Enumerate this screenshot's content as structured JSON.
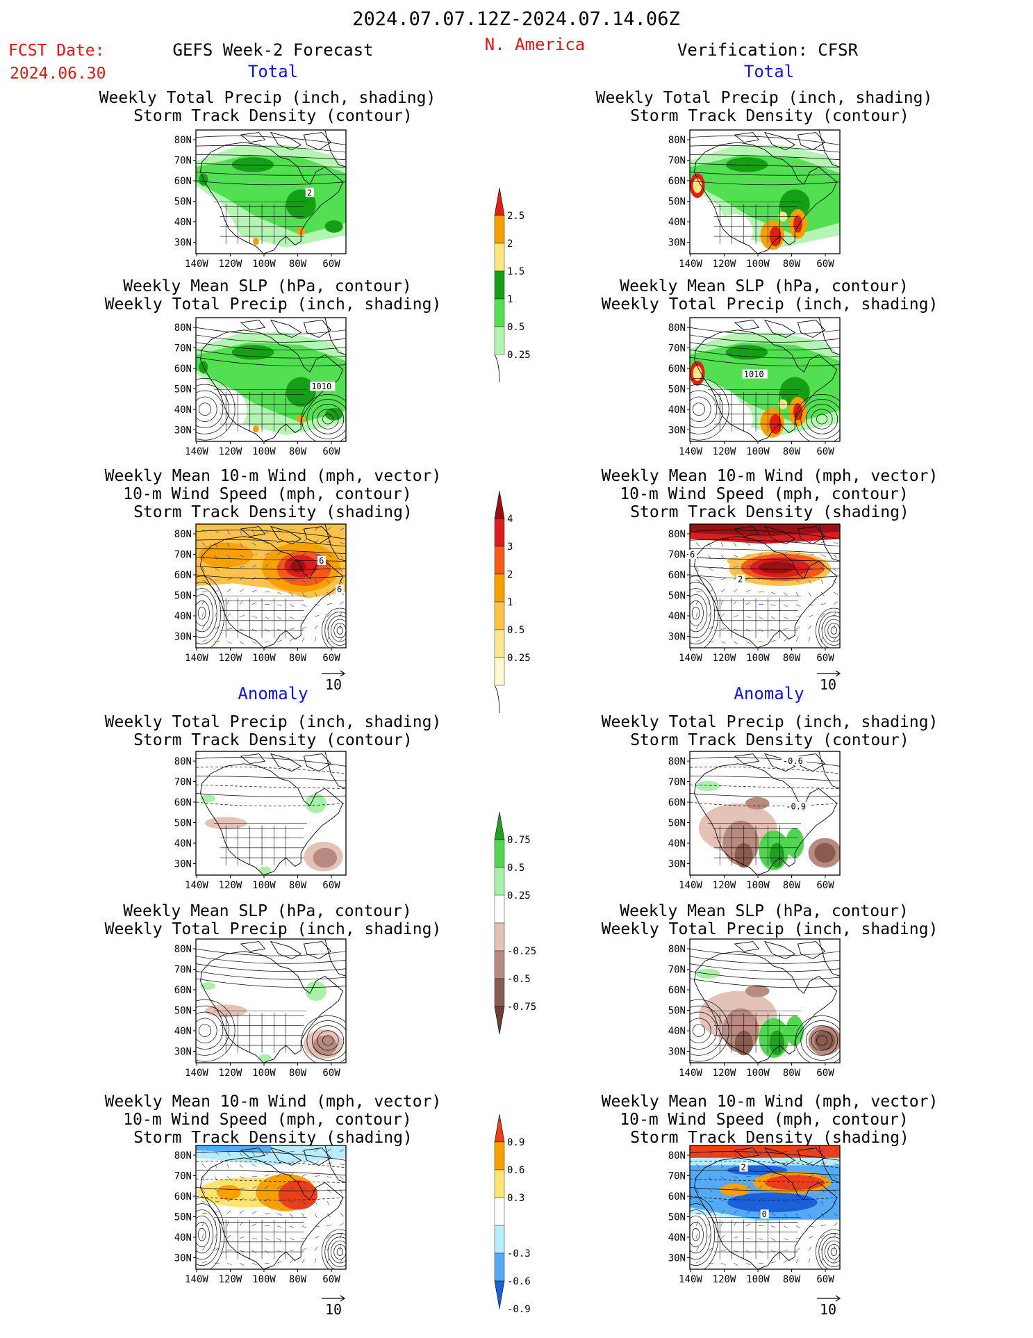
{
  "header": {
    "date_range": "2024.07.07.12Z-2024.07.14.06Z",
    "fcst_label": "FCST Date:",
    "fcst_date": "2024.06.30",
    "model_title": "GEFS Week-2 Forecast",
    "region": "N. America",
    "verification": "Verification: CFSR"
  },
  "section_labels": {
    "total": "Total",
    "anomaly": "Anomaly"
  },
  "panel_titles": {
    "precip_track": [
      "Weekly Total Precip (inch, shading)",
      "Storm Track Density (contour)"
    ],
    "slp_precip": [
      "Weekly Mean SLP (hPa, contour)",
      "Weekly Total Precip (inch, shading)"
    ],
    "wind_track": [
      "Weekly Mean 10-m Wind (mph, vector)",
      "10-m Wind Speed (mph, contour)",
      "Storm Track Density (shading)"
    ]
  },
  "map_axes": {
    "lat_ticks": [
      "80N",
      "70N",
      "60N",
      "50N",
      "40N",
      "30N"
    ],
    "lon_ticks": [
      "140W",
      "120W",
      "100W",
      "80W",
      "60W"
    ]
  },
  "vector_ref": "10",
  "contour_labels": {
    "track_2": "2",
    "slp_1010": "1010",
    "wind_6": "6",
    "wind_2": "2",
    "anom_06": "-0.6",
    "anom_09": "-0.9",
    "anom_2": "2",
    "anom_0": "0"
  },
  "colorbars": [
    {
      "id": "precip_total",
      "labels": [
        "2.5",
        "2",
        "1.5",
        "1",
        "0.5",
        "0.25"
      ],
      "colors": [
        "#e02010",
        "#f5a000",
        "#ffe680",
        "#169f16",
        "#52e052",
        "#b4f5b4"
      ]
    },
    {
      "id": "track_total",
      "labels": [
        "4",
        "3",
        "2",
        "1",
        "0.5",
        "0.25"
      ],
      "colors": [
        "#9b1010",
        "#d81e1e",
        "#f45a1a",
        "#f8a000",
        "#fcc24a",
        "#ffe690",
        "#fff8d0"
      ]
    },
    {
      "id": "precip_anom",
      "labels": [
        "0.75",
        "0.5",
        "0.25",
        "-0.25",
        "-0.5",
        "-0.75"
      ],
      "colors": [
        "#22a022",
        "#52d552",
        "#a8f0a8",
        "#ffffff",
        "#e4c2b8",
        "#b88a80",
        "#8a5c50",
        "#6a4030"
      ]
    },
    {
      "id": "track_anom",
      "labels": [
        "0.9",
        "0.6",
        "0.3",
        "-0.3",
        "-0.6",
        "-0.9"
      ],
      "colors": [
        "#e8401a",
        "#f8a000",
        "#fde470",
        "#ffffff",
        "#b8ecff",
        "#55aaf5",
        "#1a60d8"
      ]
    }
  ],
  "colors": {
    "header_red": "#ee1111",
    "section_blue": "#1111ee",
    "land_lines": "#000000",
    "wind_vector": "#3030c0"
  }
}
